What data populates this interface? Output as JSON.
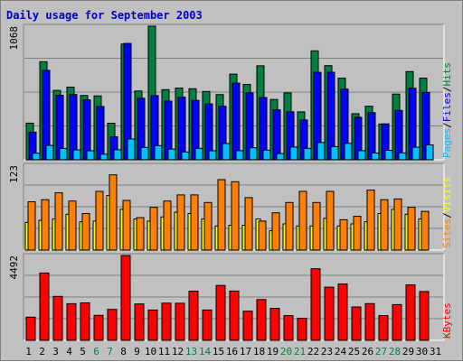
{
  "colors": {
    "background": "#c0c0c0",
    "title": "#0000cc",
    "hits": "#008040",
    "files": "#0000ff",
    "pages": "#00c0ff",
    "visits": "#ffff00",
    "sites": "#ff8000",
    "kbytes": "#ff0000",
    "weekend_label": "#008040",
    "weekday_label": "#000000"
  },
  "chart_data": {
    "type": "bar",
    "title": "Daily usage for September 2003",
    "categories": [
      "1",
      "2",
      "3",
      "4",
      "5",
      "6",
      "7",
      "8",
      "9",
      "10",
      "11",
      "12",
      "13",
      "14",
      "15",
      "16",
      "17",
      "18",
      "19",
      "20",
      "21",
      "22",
      "23",
      "24",
      "25",
      "26",
      "27",
      "28",
      "29",
      "30",
      "31"
    ],
    "weekend_days": [
      "6",
      "7",
      "13",
      "14",
      "20",
      "21",
      "27",
      "28"
    ],
    "panels": [
      {
        "ymax_label": "1068",
        "ylim": [
          0,
          1068
        ],
        "legend": [
          "Pages",
          "/",
          "Files",
          "/",
          "Hits"
        ],
        "series": [
          {
            "name": "Hits",
            "values": [
              293,
              784,
              555,
              581,
              514,
              511,
              292,
              925,
              550,
              1068,
              561,
              573,
              568,
              546,
              521,
              685,
              602,
              751,
              482,
              535,
              383,
              871,
              753,
              652,
              369,
              428,
              286,
              525,
              705,
              653
            ]
          },
          {
            "name": "Files",
            "values": [
              221,
              715,
              516,
              522,
              479,
              426,
              184,
              930,
              492,
              513,
              469,
              500,
              475,
              447,
              428,
              613,
              535,
              498,
              399,
              384,
              318,
              699,
              700,
              565,
              340,
              377,
              287,
              395,
              572,
              538
            ]
          },
          {
            "name": "Pages",
            "values": [
              53,
              115,
              91,
              79,
              72,
              45,
              80,
              166,
              99,
              113,
              86,
              63,
              91,
              72,
              130,
              73,
              96,
              77,
              50,
              102,
              91,
              138,
              105,
              131,
              73,
              54,
              76,
              55,
              100,
              119
            ]
          }
        ]
      },
      {
        "ymax_label": "123",
        "ylim": [
          0,
          123
        ],
        "legend": [
          "Sites",
          "/",
          "Visits"
        ],
        "series": [
          {
            "name": "Visits",
            "values": [
              40,
              43,
              45,
              52,
              41,
              42,
              79,
              59,
              45,
              42,
              48,
              55,
              53,
              45,
              35,
              36,
              36,
              45,
              28,
              38,
              35,
              35,
              46,
              35,
              38,
              41,
              53,
              59,
              52,
              45
            ]
          },
          {
            "name": "Sites",
            "values": [
              70,
              73,
              83,
              71,
              53,
              85,
              109,
              72,
              47,
              62,
              71,
              80,
              80,
              69,
              102,
              99,
              76,
              42,
              54,
              69,
              85,
              69,
              85,
              44,
              49,
              87,
              73,
              74,
              62,
              56
            ]
          }
        ]
      },
      {
        "ymax_label": "4492",
        "ylim": [
          0,
          4492
        ],
        "legend": [
          "KBytes"
        ],
        "series": [
          {
            "name": "KBytes",
            "values": [
              1230,
              3566,
              2326,
              1938,
              1984,
              1325,
              1637,
              4492,
              1926,
              1608,
              1971,
              1965,
              2604,
              1606,
              2904,
              2611,
              1545,
              2160,
              1692,
              1307,
              1168,
              3791,
              2817,
              2982,
              1766,
              1947,
              1308,
              1893,
              2934,
              2585
            ]
          }
        ]
      }
    ]
  }
}
